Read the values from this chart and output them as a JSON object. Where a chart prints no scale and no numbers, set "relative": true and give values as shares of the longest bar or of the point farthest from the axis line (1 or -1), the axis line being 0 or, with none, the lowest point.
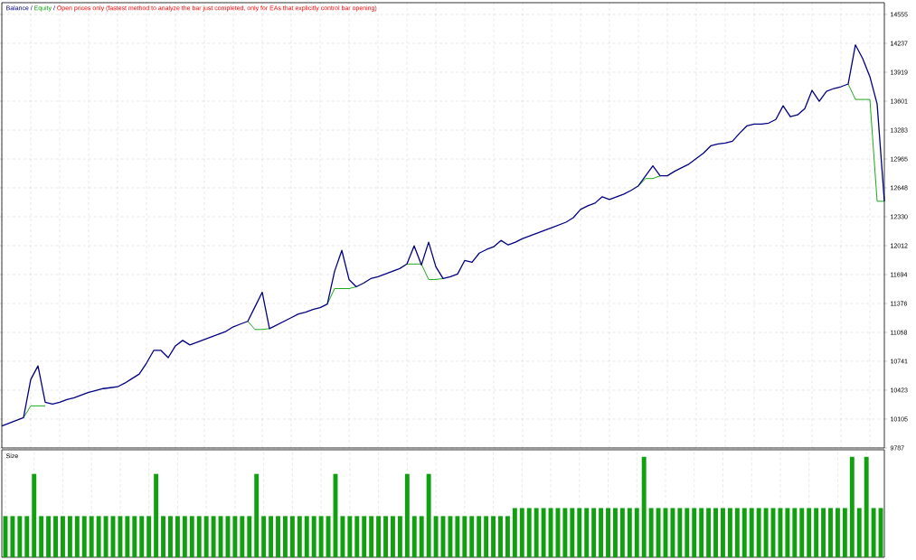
{
  "chart_data": [
    {
      "type": "line",
      "legend": "top left",
      "grid": true,
      "annotations": [
        "/",
        "/",
        "Open prices only (fastest method to analyze the bar just completed, only for EAs that explicitly control bar opening)"
      ],
      "categories": [
        null,
        null,
        null,
        null,
        null,
        null,
        null,
        null,
        null,
        null,
        null,
        null,
        null,
        null,
        null,
        null,
        null,
        null,
        null,
        null,
        null,
        null,
        null,
        null,
        null,
        null,
        null,
        null,
        null,
        null,
        null,
        null,
        null,
        null,
        null,
        null,
        null,
        null,
        null,
        null,
        null,
        null,
        null,
        null,
        null,
        null,
        null,
        null,
        null,
        null,
        null,
        null,
        null,
        null,
        null,
        null,
        null,
        null,
        null,
        null,
        null,
        null,
        null,
        null,
        null,
        null,
        null,
        null,
        null,
        null,
        null,
        null,
        null,
        null,
        null,
        null,
        null,
        null,
        null,
        null,
        null,
        null,
        null,
        null,
        null,
        null,
        null,
        null,
        null,
        null,
        null,
        null,
        null,
        null,
        null,
        null,
        null,
        null,
        null,
        null,
        null,
        null,
        null,
        null,
        null,
        null,
        null,
        null,
        null,
        null,
        null,
        null,
        null,
        null,
        null,
        null,
        null,
        null,
        null,
        null,
        null,
        null,
        null
      ],
      "ylim": [
        9787,
        14684
      ],
      "yticks": [
        9787,
        10105,
        10423,
        10741,
        11058,
        11376,
        11694,
        12012,
        12330,
        12648,
        12965,
        13283,
        13601,
        13919,
        14237,
        14555
      ],
      "series": [
        {
          "name": "Balance",
          "color": "#000080",
          "values": [
            10030,
            10060,
            10090,
            10120,
            10540,
            10690,
            10290,
            10270,
            10290,
            10320,
            10340,
            10370,
            10400,
            10420,
            10440,
            10450,
            10460,
            10500,
            10550,
            10600,
            10720,
            10860,
            10860,
            10780,
            10910,
            10970,
            10920,
            10950,
            10980,
            11010,
            11040,
            11070,
            11120,
            11150,
            11180,
            11340,
            11500,
            11100,
            11140,
            11180,
            11220,
            11260,
            11280,
            11310,
            11330,
            11370,
            11730,
            11960,
            11640,
            11560,
            11600,
            11650,
            11670,
            11700,
            11730,
            11760,
            11810,
            12010,
            11800,
            12050,
            11780,
            11650,
            11670,
            11700,
            11850,
            11830,
            11930,
            11970,
            12000,
            12070,
            12020,
            12050,
            12090,
            12120,
            12150,
            12180,
            12210,
            12240,
            12270,
            12320,
            12410,
            12450,
            12480,
            12550,
            12520,
            12550,
            12580,
            12620,
            12670,
            12780,
            12890,
            12780,
            12780,
            12830,
            12870,
            12910,
            12970,
            13030,
            13110,
            13130,
            13140,
            13160,
            13250,
            13330,
            13350,
            13350,
            13360,
            13400,
            13550,
            13430,
            13450,
            13520,
            13720,
            13600,
            13710,
            13740,
            13760,
            13790,
            14220,
            14070,
            13870,
            13570,
            12500
          ]
        },
        {
          "name": "Equity",
          "color": "#00a000",
          "values": [
            null,
            null,
            null,
            10120,
            10250,
            10250,
            10250,
            null,
            null,
            null,
            null,
            null,
            null,
            null,
            null,
            null,
            null,
            null,
            null,
            null,
            null,
            null,
            null,
            null,
            null,
            null,
            null,
            null,
            null,
            null,
            null,
            null,
            null,
            null,
            11180,
            11090,
            11090,
            11100,
            null,
            null,
            null,
            null,
            null,
            null,
            null,
            11370,
            11540,
            11540,
            11540,
            11560,
            null,
            null,
            null,
            null,
            null,
            null,
            11810,
            11810,
            11810,
            11640,
            11640,
            11650,
            null,
            null,
            null,
            null,
            null,
            null,
            null,
            null,
            null,
            null,
            null,
            null,
            null,
            null,
            null,
            null,
            null,
            null,
            null,
            null,
            null,
            null,
            null,
            null,
            null,
            null,
            12670,
            12750,
            12750,
            12780,
            null,
            null,
            null,
            null,
            null,
            null,
            null,
            null,
            null,
            null,
            null,
            null,
            null,
            null,
            null,
            null,
            null,
            null,
            null,
            null,
            null,
            null,
            null,
            null,
            null,
            13790,
            13620,
            13620,
            13620,
            12500,
            12500
          ]
        }
      ]
    },
    {
      "type": "bar",
      "title": "Size",
      "relative": true,
      "grid": "x",
      "color": "#10a010",
      "categories": [
        null,
        null,
        null,
        null,
        null,
        null,
        null,
        null,
        null,
        null,
        null,
        null,
        null,
        null,
        null,
        null,
        null,
        null,
        null,
        null,
        null,
        null,
        null,
        null,
        null,
        null,
        null,
        null,
        null,
        null,
        null,
        null,
        null,
        null,
        null,
        null,
        null,
        null,
        null,
        null,
        null,
        null,
        null,
        null,
        null,
        null,
        null,
        null,
        null,
        null,
        null,
        null,
        null,
        null,
        null,
        null,
        null,
        null,
        null,
        null,
        null,
        null,
        null,
        null,
        null,
        null,
        null,
        null,
        null,
        null,
        null,
        null,
        null,
        null,
        null,
        null,
        null,
        null,
        null,
        null,
        null,
        null,
        null,
        null,
        null,
        null,
        null,
        null,
        null,
        null,
        null,
        null,
        null,
        null,
        null,
        null,
        null,
        null,
        null,
        null,
        null,
        null,
        null,
        null,
        null,
        null,
        null,
        null,
        null,
        null,
        null,
        null,
        null,
        null,
        null,
        null,
        null,
        null,
        null,
        null,
        null,
        null,
        null
      ],
      "values": [
        0.41,
        0.41,
        0.41,
        0.41,
        0.83,
        0.41,
        0.41,
        0.41,
        0.41,
        0.41,
        0.41,
        0.41,
        0.41,
        0.41,
        0.41,
        0.41,
        0.41,
        0.41,
        0.41,
        0.41,
        0.41,
        0.83,
        0.41,
        0.41,
        0.41,
        0.41,
        0.41,
        0.41,
        0.41,
        0.41,
        0.41,
        0.41,
        0.41,
        0.41,
        0.41,
        0.83,
        0.41,
        0.41,
        0.41,
        0.41,
        0.41,
        0.41,
        0.41,
        0.41,
        0.41,
        0.41,
        0.83,
        0.41,
        0.41,
        0.41,
        0.41,
        0.41,
        0.41,
        0.41,
        0.41,
        0.41,
        0.83,
        0.41,
        0.41,
        0.83,
        0.41,
        0.41,
        0.41,
        0.41,
        0.41,
        0.41,
        0.41,
        0.41,
        0.41,
        0.41,
        0.41,
        0.49,
        0.49,
        0.49,
        0.49,
        0.49,
        0.49,
        0.49,
        0.49,
        0.49,
        0.49,
        0.49,
        0.49,
        0.49,
        0.49,
        0.49,
        0.49,
        0.49,
        0.49,
        1,
        0.49,
        0.49,
        0.49,
        0.49,
        0.49,
        0.49,
        0.49,
        0.49,
        0.49,
        0.49,
        0.49,
        0.49,
        0.49,
        0.49,
        0.49,
        0.49,
        0.49,
        0.49,
        0.49,
        0.49,
        0.49,
        0.49,
        0.49,
        0.49,
        0.49,
        0.49,
        0.49,
        0.49,
        1,
        0.49,
        1,
        0.49,
        0.49
      ]
    }
  ]
}
